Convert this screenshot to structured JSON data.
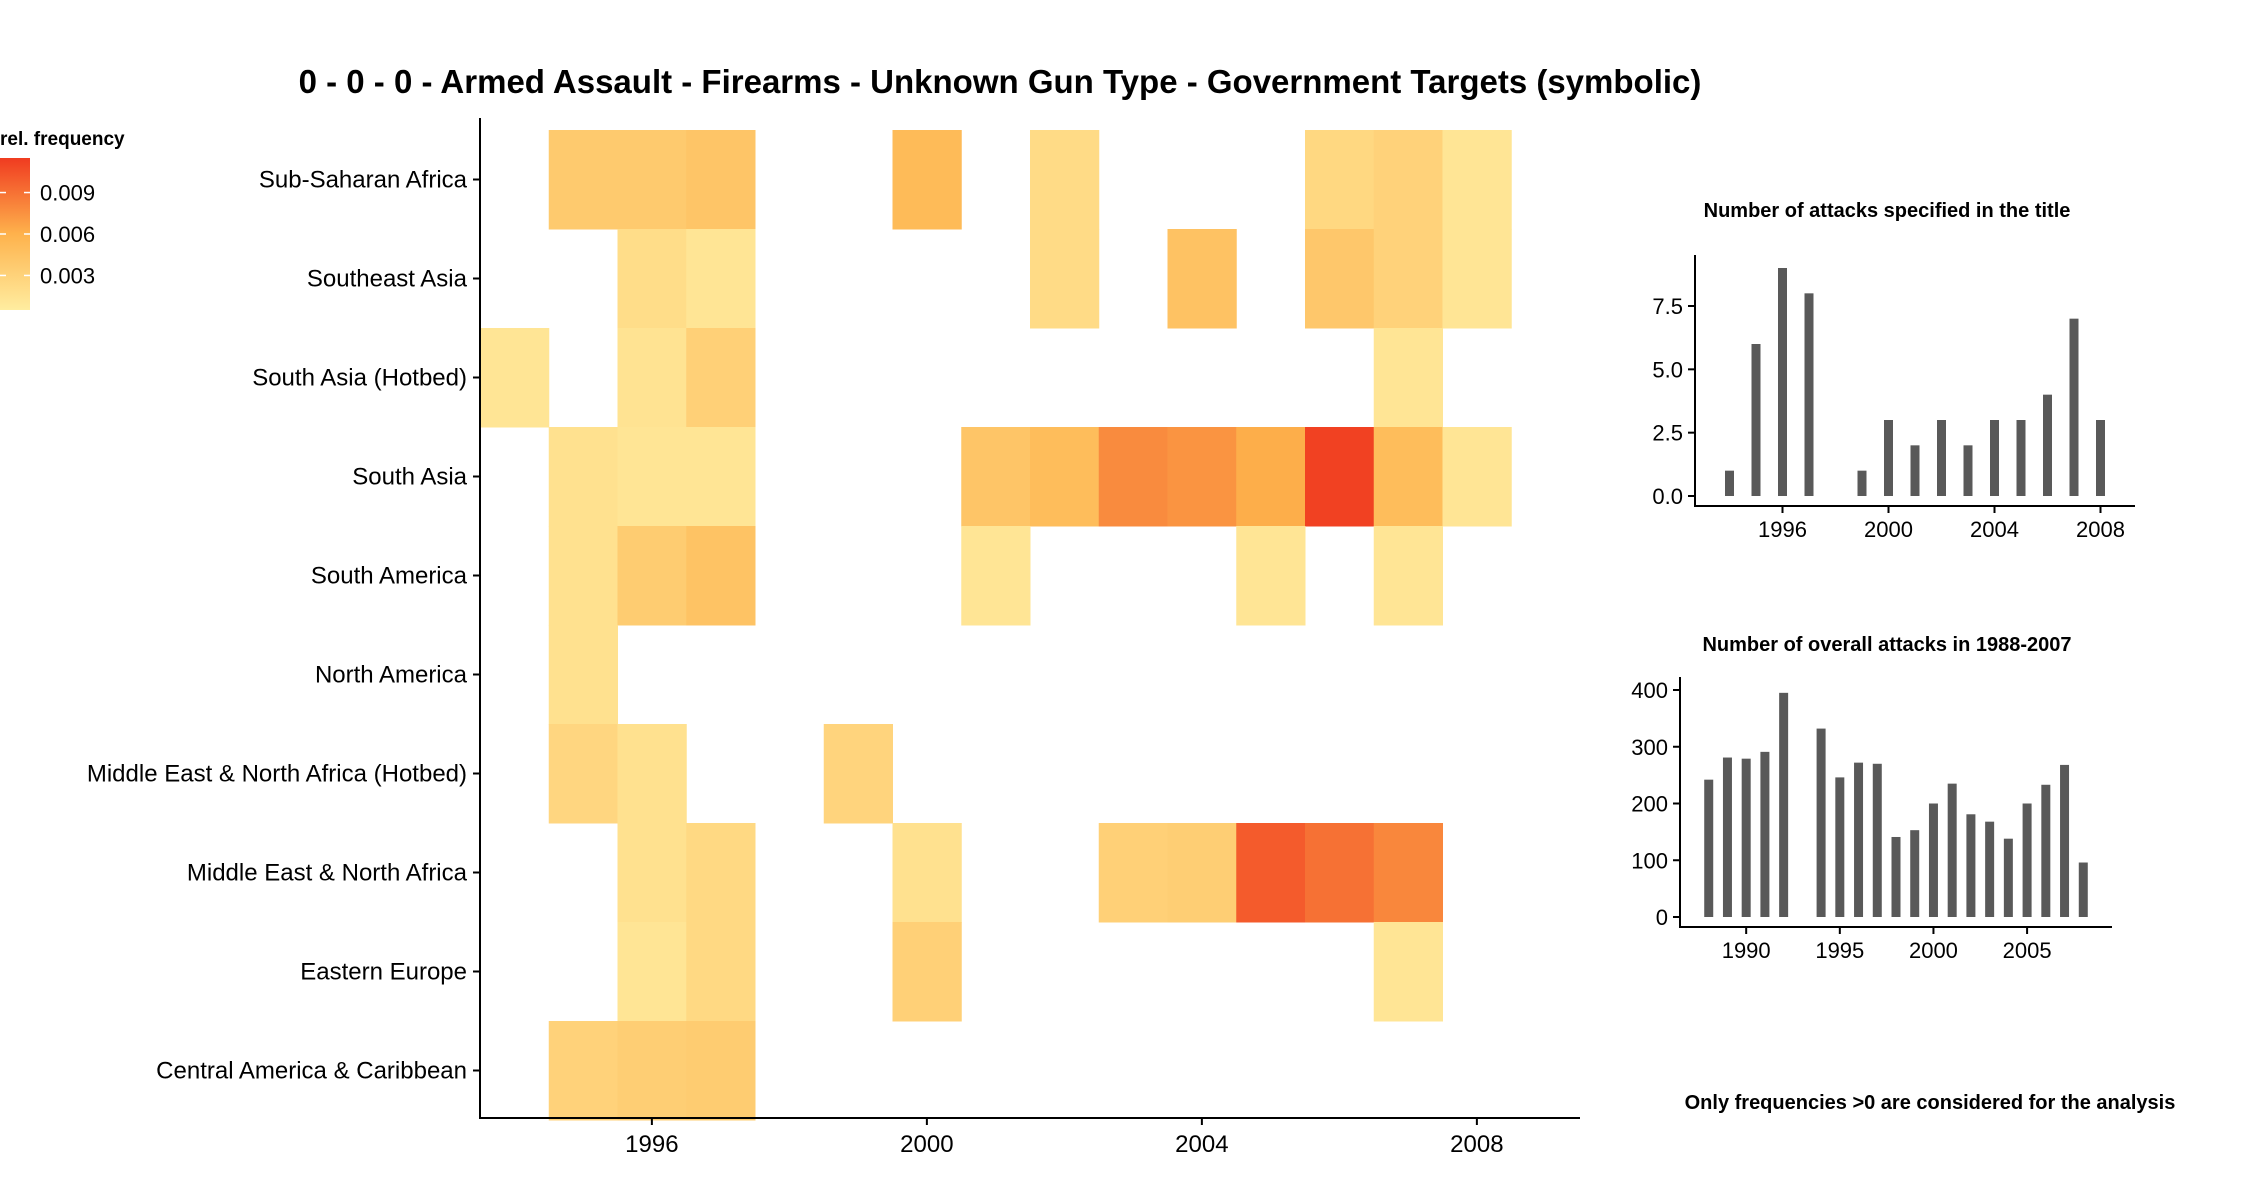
{
  "colors": {
    "low": "#FFEDA0",
    "mid": "#FEB24C",
    "high": "#F03B20",
    "bar": "#595959"
  },
  "footnote": "Only frequencies >0 are considered for the analysis",
  "chart_data": [
    {
      "type": "heatmap",
      "title": "0 - 0 - 0 - Armed Assault - Firearms - Unknown Gun Type - Government Targets (symbolic)",
      "xlabel": "",
      "ylabel": "",
      "x_range": [
        1993.5,
        2009.5
      ],
      "x_ticks": [
        1996,
        2000,
        2004,
        2008
      ],
      "regions": [
        "Sub-Saharan Africa",
        "Southeast Asia",
        "South Asia (Hotbed)",
        "South Asia",
        "South America",
        "North America",
        "Middle East & North Africa (Hotbed)",
        "Middle East & North Africa",
        "Eastern Europe",
        "Central America & Caribbean"
      ],
      "legend": {
        "title": "rel. frequency",
        "ticks": [
          0.003,
          0.006,
          0.009
        ],
        "tick_labels": [
          "0.003",
          "0.006",
          "0.009"
        ],
        "range": [
          0.0005,
          0.0115
        ],
        "placement": "top-left"
      },
      "cells": [
        {
          "region": "Sub-Saharan Africa",
          "year": 1995,
          "value": 0.0038
        },
        {
          "region": "Sub-Saharan Africa",
          "year": 1996,
          "value": 0.0038
        },
        {
          "region": "Sub-Saharan Africa",
          "year": 1997,
          "value": 0.0042
        },
        {
          "region": "Sub-Saharan Africa",
          "year": 2000,
          "value": 0.0052
        },
        {
          "region": "Sub-Saharan Africa",
          "year": 2002,
          "value": 0.0022
        },
        {
          "region": "Sub-Saharan Africa",
          "year": 2006,
          "value": 0.0025
        },
        {
          "region": "Sub-Saharan Africa",
          "year": 2007,
          "value": 0.003
        },
        {
          "region": "Sub-Saharan Africa",
          "year": 2008,
          "value": 0.0012
        },
        {
          "region": "Southeast Asia",
          "year": 1996,
          "value": 0.002
        },
        {
          "region": "Southeast Asia",
          "year": 1997,
          "value": 0.0012
        },
        {
          "region": "Southeast Asia",
          "year": 2002,
          "value": 0.0022
        },
        {
          "region": "Southeast Asia",
          "year": 2004,
          "value": 0.0045
        },
        {
          "region": "Southeast Asia",
          "year": 2006,
          "value": 0.004
        },
        {
          "region": "Southeast Asia",
          "year": 2007,
          "value": 0.003
        },
        {
          "region": "Southeast Asia",
          "year": 2008,
          "value": 0.0012
        },
        {
          "region": "South Asia (Hotbed)",
          "year": 1994,
          "value": 0.0012
        },
        {
          "region": "South Asia (Hotbed)",
          "year": 1996,
          "value": 0.0014
        },
        {
          "region": "South Asia (Hotbed)",
          "year": 1997,
          "value": 0.0032
        },
        {
          "region": "South Asia (Hotbed)",
          "year": 2007,
          "value": 0.0012
        },
        {
          "region": "South Asia",
          "year": 1995,
          "value": 0.0016
        },
        {
          "region": "South Asia",
          "year": 1996,
          "value": 0.0012
        },
        {
          "region": "South Asia",
          "year": 1997,
          "value": 0.0012
        },
        {
          "region": "South Asia",
          "year": 2001,
          "value": 0.0042
        },
        {
          "region": "South Asia",
          "year": 2002,
          "value": 0.005
        },
        {
          "region": "South Asia",
          "year": 2003,
          "value": 0.0078
        },
        {
          "region": "South Asia",
          "year": 2004,
          "value": 0.0074
        },
        {
          "region": "South Asia",
          "year": 2005,
          "value": 0.0062
        },
        {
          "region": "South Asia",
          "year": 2006,
          "value": 0.0112
        },
        {
          "region": "South Asia",
          "year": 2007,
          "value": 0.005
        },
        {
          "region": "South Asia",
          "year": 2008,
          "value": 0.0012
        },
        {
          "region": "South America",
          "year": 1995,
          "value": 0.0016
        },
        {
          "region": "South America",
          "year": 1996,
          "value": 0.0036
        },
        {
          "region": "South America",
          "year": 1997,
          "value": 0.0044
        },
        {
          "region": "South America",
          "year": 2001,
          "value": 0.0012
        },
        {
          "region": "South America",
          "year": 2005,
          "value": 0.0012
        },
        {
          "region": "South America",
          "year": 2007,
          "value": 0.0012
        },
        {
          "region": "North America",
          "year": 1995,
          "value": 0.0016
        },
        {
          "region": "Middle East & North Africa (Hotbed)",
          "year": 1995,
          "value": 0.0026
        },
        {
          "region": "Middle East & North Africa (Hotbed)",
          "year": 1996,
          "value": 0.0016
        },
        {
          "region": "Middle East & North Africa (Hotbed)",
          "year": 1999,
          "value": 0.0028
        },
        {
          "region": "Middle East & North Africa",
          "year": 1996,
          "value": 0.0016
        },
        {
          "region": "Middle East & North Africa",
          "year": 1997,
          "value": 0.0024
        },
        {
          "region": "Middle East & North Africa",
          "year": 2000,
          "value": 0.0016
        },
        {
          "region": "Middle East & North Africa",
          "year": 2003,
          "value": 0.0032
        },
        {
          "region": "Middle East & North Africa",
          "year": 2004,
          "value": 0.0034
        },
        {
          "region": "Middle East & North Africa",
          "year": 2005,
          "value": 0.01
        },
        {
          "region": "Middle East & North Africa",
          "year": 2006,
          "value": 0.009
        },
        {
          "region": "Middle East & North Africa",
          "year": 2007,
          "value": 0.008
        },
        {
          "region": "Eastern Europe",
          "year": 1996,
          "value": 0.0012
        },
        {
          "region": "Eastern Europe",
          "year": 1997,
          "value": 0.0024
        },
        {
          "region": "Eastern Europe",
          "year": 2000,
          "value": 0.0032
        },
        {
          "region": "Eastern Europe",
          "year": 2007,
          "value": 0.0012
        },
        {
          "region": "Central America & Caribbean",
          "year": 1995,
          "value": 0.003
        },
        {
          "region": "Central America & Caribbean",
          "year": 1996,
          "value": 0.0034
        },
        {
          "region": "Central America & Caribbean",
          "year": 1997,
          "value": 0.0036
        }
      ]
    },
    {
      "type": "bar",
      "title": "Number of attacks specified in the title",
      "xlabel": "",
      "ylabel": "",
      "x": [
        1994,
        1995,
        1996,
        1997,
        1999,
        2000,
        2001,
        2002,
        2003,
        2004,
        2005,
        2006,
        2007,
        2008
      ],
      "values": [
        1,
        6,
        9,
        8,
        1,
        3,
        2,
        3,
        2,
        3,
        3,
        4,
        7,
        3
      ],
      "x_ticks": [
        1996,
        2000,
        2004,
        2008
      ],
      "x_range": [
        1993,
        2009
      ],
      "y_ticks": [
        0.0,
        2.5,
        5.0,
        7.5
      ],
      "y_tick_labels": [
        "0.0",
        "2.5",
        "5.0",
        "7.5"
      ],
      "ylim": [
        0,
        9
      ]
    },
    {
      "type": "bar",
      "title": "Number of overall attacks in 1988-2007",
      "xlabel": "",
      "ylabel": "",
      "x": [
        1988,
        1989,
        1990,
        1991,
        1992,
        1994,
        1995,
        1996,
        1997,
        1998,
        1999,
        2000,
        2001,
        2002,
        2003,
        2004,
        2005,
        2006,
        2007,
        2008
      ],
      "values": [
        242,
        281,
        279,
        291,
        395,
        332,
        246,
        272,
        270,
        141,
        153,
        200,
        235,
        181,
        168,
        138,
        200,
        233,
        268,
        96
      ],
      "x_ticks": [
        1990,
        1995,
        2000,
        2005
      ],
      "x_range": [
        1987,
        2009
      ],
      "y_ticks": [
        0,
        100,
        200,
        300,
        400
      ],
      "y_tick_labels": [
        "0",
        "100",
        "200",
        "300",
        "400"
      ],
      "ylim": [
        0,
        400
      ]
    }
  ]
}
